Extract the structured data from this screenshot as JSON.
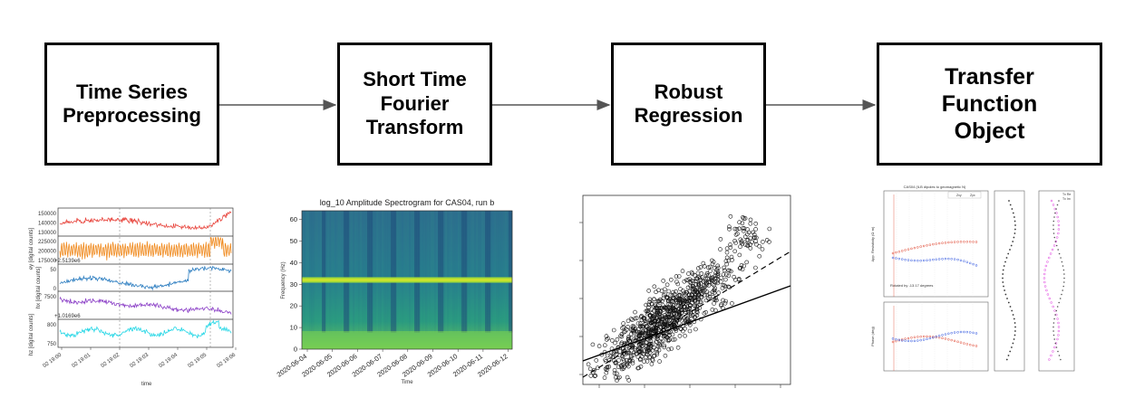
{
  "pipeline": [
    {
      "id": "box-1",
      "label": "Time Series\nPreprocessing"
    },
    {
      "id": "box-2",
      "label": "Short Time\nFourier\nTransform"
    },
    {
      "id": "box-3",
      "label": "Robust\nRegression"
    },
    {
      "id": "box-4",
      "label": "Transfer\nFunction\nObject"
    }
  ],
  "timeseries": {
    "channels": [
      {
        "name": "ex",
        "ylabel": "ex [digital counts]",
        "color": "#e8473f",
        "ticks": [
          "150000",
          "140000",
          "130000"
        ]
      },
      {
        "name": "ey",
        "ylabel": "ey [digital counts]",
        "color": "#f08a1e",
        "ticks": [
          "225000",
          "200000",
          "175000"
        ]
      },
      {
        "name": "hx",
        "ylabel": "hx [digital counts]",
        "color": "#2f7fc1",
        "ticks": [
          "50",
          "0"
        ],
        "offset": "+2.5139e6"
      },
      {
        "name": "hy",
        "ylabel": "hy [digital counts]",
        "color": "#8e44c8",
        "ticks": [
          "7500"
        ],
        "offset": "+1.0169e6"
      },
      {
        "name": "hz",
        "ylabel": "hz [digital counts]",
        "color": "#28d7e6",
        "ticks": [
          "800",
          "750"
        ]
      }
    ],
    "xticks": [
      "02 19:00",
      "02 19:01",
      "02 19:02",
      "02 19:03",
      "02 19:04",
      "02 19:05",
      "02 19:06"
    ],
    "xlabel": "time"
  },
  "spectrogram": {
    "title": "log_10 Amplitude Spectrogram for CAS04, run b",
    "ylabel": "Frequency (Hz)",
    "xlabel": "Time",
    "yticks": [
      "0",
      "10",
      "20",
      "30",
      "40",
      "50",
      "60"
    ],
    "xticks": [
      "2020-06-04",
      "2020-06-05",
      "2020-06-06",
      "2020-06-07",
      "2020-06-08",
      "2020-06-09",
      "2020-06-10",
      "2020-06-11",
      "2020-06-12"
    ]
  },
  "regression": {
    "solid_color": "#000000",
    "dashed_color": "#000000"
  },
  "transfer_function": {
    "title": "CAS04 (ILB dipoles to geomagnetic N)",
    "legend_top": [
      "Zxy",
      "Zyx"
    ],
    "legend_side": [
      "Tx Re",
      "Tx Im"
    ],
    "rotated_note": "Rotated by -13.17 degrees",
    "ylabel_top": "App. Resistivity (Ω·m)",
    "ylabel_bottom": "Phase (deg)",
    "xlabel": "Period (s)",
    "colors": {
      "xy": "#e0452f",
      "yx": "#2f55e0",
      "tip": "#e040e0"
    }
  }
}
